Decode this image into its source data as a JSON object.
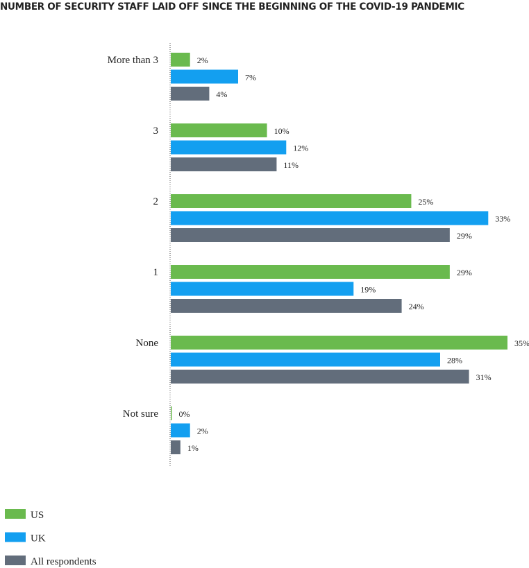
{
  "chart_data": {
    "type": "bar",
    "orientation": "horizontal",
    "title": "NUMBER OF SECURITY STAFF LAID OFF SINCE THE BEGINNING OF THE COVID-19 PANDEMIC",
    "categories": [
      "More than 3",
      "3",
      "2",
      "1",
      "None",
      "Not sure"
    ],
    "series": [
      {
        "name": "US",
        "color": "#6aba4e",
        "values": [
          2,
          10,
          25,
          29,
          35,
          0
        ]
      },
      {
        "name": "UK",
        "color": "#139ff0",
        "values": [
          7,
          12,
          33,
          19,
          28,
          2
        ]
      },
      {
        "name": "All respondents",
        "color": "#626d7b",
        "values": [
          4,
          11,
          29,
          24,
          31,
          1
        ]
      }
    ],
    "value_suffix": "%",
    "xlim": [
      0,
      35
    ],
    "grid": false,
    "legend_position": "bottom-left"
  }
}
